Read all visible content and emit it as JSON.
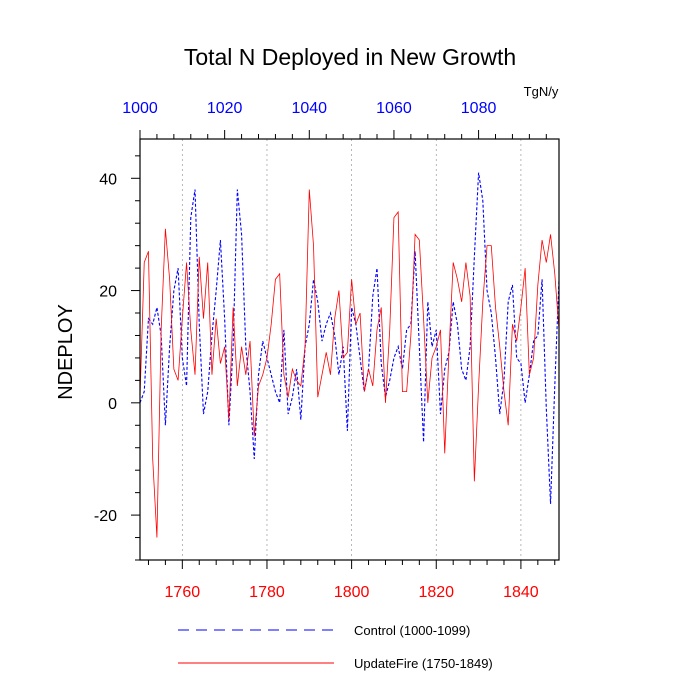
{
  "chart_data": {
    "type": "line",
    "title": "Total N Deployed in New Growth",
    "ylabel": "NDEPLOY",
    "units_label": "TgN/y",
    "ylim": [
      -28,
      47
    ],
    "yticks": [
      -20,
      0,
      20,
      40
    ],
    "bottom_axis": {
      "range": [
        1750,
        1849
      ],
      "ticks": [
        1760,
        1780,
        1800,
        1820,
        1840
      ],
      "color": "#ff0000"
    },
    "top_axis": {
      "range": [
        1000,
        1099
      ],
      "ticks": [
        1000,
        1020,
        1040,
        1060,
        1080
      ],
      "color": "#0000ff"
    },
    "vertical_gridlines_at_bottom_ticks": true,
    "legend_position": "bottom",
    "series": [
      {
        "name": "Control (1000-1099)",
        "axis": "top",
        "color": "#0000ff",
        "style": "dashed",
        "x_start": 1000,
        "values": [
          0,
          2,
          15,
          14,
          17,
          12,
          -4,
          10,
          20,
          24,
          8,
          3,
          33,
          38,
          14,
          -2,
          2,
          12,
          20,
          29,
          15,
          -4,
          10,
          38,
          30,
          10,
          2,
          -10,
          5,
          11,
          8,
          5,
          2,
          0,
          13,
          -2,
          1,
          6,
          -3,
          10,
          14,
          22,
          18,
          11,
          14,
          16,
          12,
          5,
          10,
          -5,
          17,
          14,
          8,
          2,
          6,
          19,
          24,
          7,
          1,
          4,
          8,
          10,
          6,
          13,
          14,
          27,
          10,
          -7,
          18,
          10,
          13,
          -2,
          6,
          9,
          18,
          14,
          6,
          4,
          10,
          26,
          41,
          36,
          20,
          16,
          8,
          -2,
          4,
          18,
          21,
          8,
          7,
          0,
          5,
          11,
          12,
          22,
          -1,
          -18,
          3,
          22
        ]
      },
      {
        "name": "UpdateFire (1750-1849)",
        "axis": "bottom",
        "color": "#ff0000",
        "style": "solid",
        "x_start": 1750,
        "values": [
          1,
          25,
          27,
          -10,
          -24,
          13,
          31,
          22,
          6,
          4,
          15,
          25,
          13,
          5,
          26,
          15,
          25,
          5,
          15,
          7,
          10,
          -3,
          17,
          3,
          10,
          5,
          11,
          -6,
          3,
          5,
          8,
          14,
          22,
          23,
          5,
          1,
          6,
          4,
          3,
          10,
          38,
          28,
          1,
          5,
          9,
          5,
          15,
          20,
          8,
          9,
          22,
          14,
          16,
          2,
          6,
          3,
          13,
          17,
          0,
          13,
          33,
          34,
          2,
          2,
          12,
          30,
          29,
          15,
          0,
          8,
          10,
          13,
          -9,
          9,
          25,
          22,
          18,
          25,
          19,
          -14,
          3,
          18,
          28,
          28,
          17,
          10,
          2,
          -4,
          14,
          11,
          17,
          24,
          5,
          8,
          21,
          29,
          25,
          30,
          23,
          13
        ]
      }
    ]
  }
}
